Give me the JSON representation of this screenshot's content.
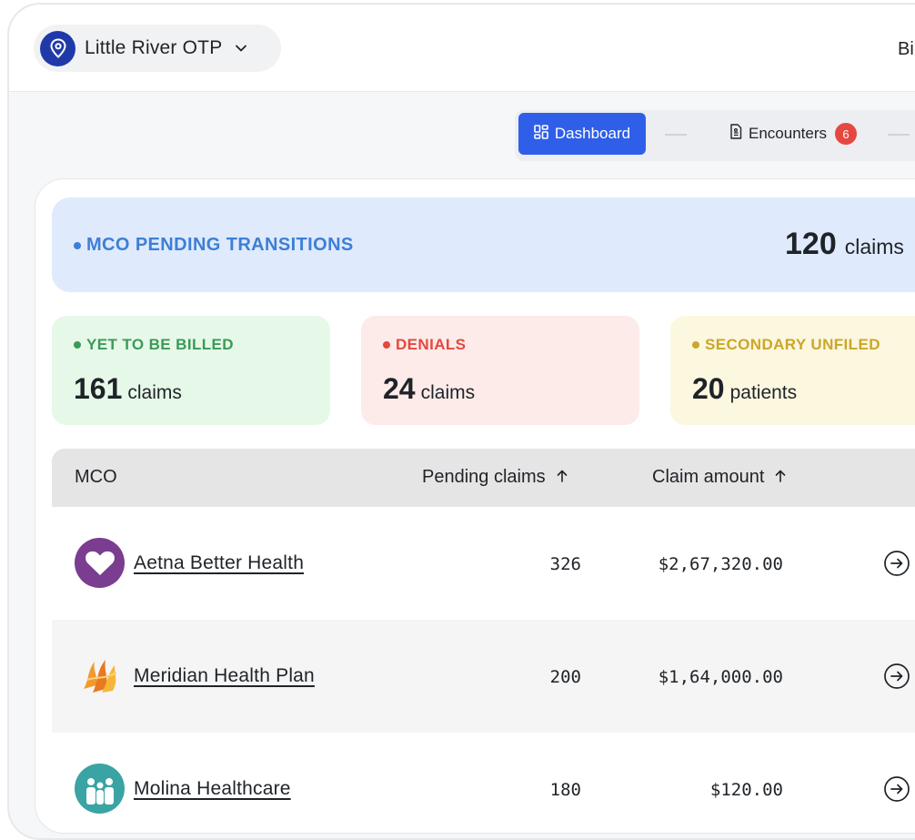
{
  "header": {
    "location_name": "Little River OTP",
    "right_text": "Bi"
  },
  "tabs": [
    {
      "label": "Dashboard",
      "icon": "grid-icon",
      "active": true
    },
    {
      "label": "Encounters",
      "icon": "document-icon",
      "badge": "6",
      "active": false
    }
  ],
  "banner": {
    "label": "MCO PENDING TRANSITIONS",
    "count": "120",
    "unit": "claims"
  },
  "cards": [
    {
      "label": "YET TO BE BILLED",
      "count": "161",
      "unit": "claims",
      "color": "#3c9a57",
      "bg": "#e6f8e8"
    },
    {
      "label": "DENIALS",
      "count": "24",
      "unit": "claims",
      "color": "#e5483f",
      "bg": "#fcebe9"
    },
    {
      "label": "SECONDARY UNFILED",
      "count": "20",
      "unit": "patients",
      "color": "#cca62a",
      "bg": "#fcf7df"
    }
  ],
  "table": {
    "columns": [
      "MCO",
      "Pending claims",
      "Claim amount"
    ],
    "rows": [
      {
        "name": "Aetna Better Health",
        "pending": "326",
        "amount": "$2,67,320.00",
        "logo": "heart-logo-icon"
      },
      {
        "name": "Meridian Health Plan",
        "pending": "200",
        "amount": "$1,64,000.00",
        "logo": "flame-logo-icon"
      },
      {
        "name": "Molina Healthcare",
        "pending": "180",
        "amount": "$120.00",
        "logo": "family-logo-icon"
      }
    ]
  },
  "colors": {
    "accent": "#2f5fe8",
    "banner_bg": "#dfeafc",
    "banner_text": "#3d7fd6",
    "aetna_purple": "#7a3d8f",
    "molina_teal": "#3aa3a4"
  }
}
